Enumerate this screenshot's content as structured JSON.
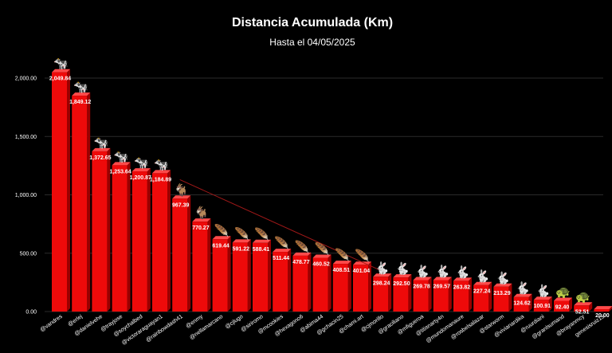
{
  "chart_data": {
    "type": "bar",
    "title": "Distancia Acumulada (Km)",
    "subtitle": "Hasta el 04/05/2025",
    "ylim": [
      0,
      2000
    ],
    "yticks": [
      "0.00",
      "500.00",
      "1,000.00",
      "1,500.00",
      "2,000.00"
    ],
    "grid": true,
    "bar_color": "#ee0a0a",
    "trend_color": "#a01818",
    "categories": [
      "@vandres",
      "@erlej",
      "@danielvehe",
      "@trayjose",
      "@soychalbed",
      "@victoraraguayan1",
      "@rainbowdash41",
      "@enmy",
      "@nellamarcano",
      "@cjlugo",
      "@siriromo",
      "@mcookies",
      "@hexagono6",
      "@abima44",
      "@gchacin25",
      "@chami.art",
      "@cjmorillo",
      "@graciliano",
      "@mfigueroa",
      "@titisnarty4n",
      "@mundomanaure",
      "@rosbelsalazar",
      "@starworm",
      "@vivianardika",
      "@ruurdiani",
      "@granlsumand",
      "@brayanmcy",
      "genesisruiz15"
    ],
    "values": [
      2049.84,
      1849.12,
      1372.65,
      1253.64,
      1200.87,
      1184.89,
      967.39,
      770.27,
      619.44,
      591.22,
      588.41,
      511.44,
      478.77,
      460.52,
      408.51,
      401.04,
      298.24,
      292.5,
      269.78,
      269.57,
      263.82,
      227.24,
      213.29,
      124.62,
      100.91,
      92.4,
      52.51,
      20.0
    ],
    "value_labels": [
      "2,049.84",
      "1,849.12",
      "1,372.65",
      "1,253.64",
      "1,200.87",
      "1,184.89",
      "967.39",
      "770.27",
      "619.44",
      "591.22",
      "588.41",
      "511.44",
      "478.77",
      "460.52",
      "408.51",
      "401.04",
      "298.24",
      "292.50",
      "269.78",
      "269.57",
      "263.82",
      "227.24",
      "213.29",
      "124.62",
      "100.91",
      "92.40",
      "52.51",
      "20.00"
    ],
    "icons": [
      "cow-icon",
      "cow-icon",
      "cow-icon",
      "cow-icon",
      "cow-icon",
      "cow-icon",
      "goat-icon",
      "goat-icon",
      "feather-icon",
      "feather-icon",
      "feather-icon",
      "feather-icon",
      "feather-icon",
      "feather-icon",
      "feather-icon",
      "feather-icon",
      "rabbit-icon",
      "rabbit-icon",
      "rabbit-icon",
      "rabbit-icon",
      "rabbit-icon",
      "rabbit-icon",
      "rabbit-icon",
      "rabbit-icon",
      "rabbit-icon",
      "turtle-icon",
      "turtle-icon",
      "none"
    ],
    "trendline": {
      "from_category": "@rainbowdash41",
      "to_category": "@cjmorillo",
      "from_value": 1130,
      "to_value": 352
    }
  }
}
